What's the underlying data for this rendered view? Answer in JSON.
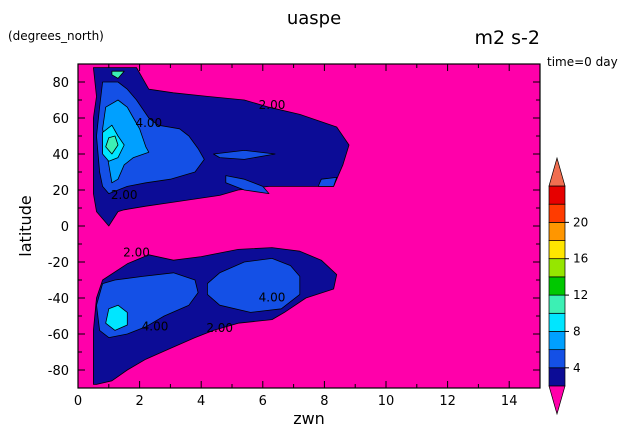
{
  "chart_data": {
    "type": "contour",
    "title": "uaspe",
    "units": "m2 s-2",
    "y_units_note": "(degrees_north)",
    "time_label": "time=0 day",
    "xlabel": "zwn",
    "ylabel": "latitude",
    "xlim": [
      0,
      15
    ],
    "ylim": [
      -90,
      90
    ],
    "x_ticks": [
      "0",
      "2",
      "4",
      "6",
      "8",
      "10",
      "12",
      "14"
    ],
    "x_tick_values": [
      0,
      2,
      4,
      6,
      8,
      10,
      12,
      14
    ],
    "y_ticks": [
      "80",
      "60",
      "40",
      "20",
      "0",
      "-20",
      "-40",
      "-60",
      "-80"
    ],
    "y_tick_values": [
      80,
      60,
      40,
      20,
      0,
      -20,
      -40,
      -60,
      -80
    ],
    "contour_labels": [
      {
        "text": "4.00",
        "x": 2.3,
        "y": 55
      },
      {
        "text": "2.00",
        "x": 6.3,
        "y": 65
      },
      {
        "text": "2.00",
        "x": 1.5,
        "y": 15
      },
      {
        "text": "2.00",
        "x": 1.9,
        "y": -17
      },
      {
        "text": "4.00",
        "x": 6.3,
        "y": -42
      },
      {
        "text": "4.00",
        "x": 2.5,
        "y": -58
      },
      {
        "text": "2.00",
        "x": 4.6,
        "y": -59
      }
    ],
    "colorbar": {
      "tick_labels": [
        "4",
        "8",
        "12",
        "16",
        "20"
      ],
      "levels": [
        2,
        4,
        6,
        8,
        10,
        12,
        14,
        16,
        18,
        20,
        22
      ],
      "colors": [
        "#0c0c96",
        "#1450e6",
        "#00a0ff",
        "#00e6ff",
        "#3cf0b4",
        "#00c800",
        "#96e600",
        "#ffe600",
        "#ff9600",
        "#ff3c00",
        "#e60000"
      ],
      "below_color": "#ff00aa",
      "above_color": "#f06e50"
    },
    "background_color": "#ff00aa",
    "bands": [
      {
        "level": "2-4",
        "color": "#0c0c96",
        "polygons": [
          [
            [
              0.5,
              88
            ],
            [
              1.9,
              88
            ],
            [
              2.3,
              76
            ],
            [
              3.1,
              74
            ],
            [
              4.2,
              72
            ],
            [
              5.4,
              70
            ],
            [
              6.2,
              66
            ],
            [
              7.2,
              62
            ],
            [
              8.4,
              55
            ],
            [
              8.8,
              45
            ],
            [
              8.6,
              34
            ],
            [
              8.3,
              22
            ],
            [
              7.4,
              22
            ],
            [
              6.2,
              22
            ],
            [
              5.2,
              20
            ],
            [
              4.6,
              17
            ],
            [
              3.8,
              15
            ],
            [
              3.0,
              13
            ],
            [
              2.2,
              11
            ],
            [
              1.5,
              9
            ],
            [
              1.3,
              8
            ],
            [
              1.0,
              0
            ],
            [
              0.8,
              4
            ],
            [
              0.6,
              8
            ],
            [
              0.5,
              18
            ],
            [
              0.5,
              34
            ],
            [
              0.5,
              60
            ],
            [
              0.6,
              72
            ]
          ],
          [
            [
              0.5,
              -88
            ],
            [
              0.5,
              -78
            ],
            [
              0.5,
              -58
            ],
            [
              0.6,
              -40
            ],
            [
              0.8,
              -30
            ],
            [
              1.6,
              -21
            ],
            [
              2.3,
              -16
            ],
            [
              3.1,
              -19
            ],
            [
              4.0,
              -17
            ],
            [
              5.2,
              -13
            ],
            [
              6.3,
              -12
            ],
            [
              7.2,
              -14
            ],
            [
              7.9,
              -19
            ],
            [
              8.4,
              -27
            ],
            [
              8.3,
              -35
            ],
            [
              7.4,
              -40
            ],
            [
              6.7,
              -48
            ],
            [
              6.3,
              -52
            ],
            [
              5.2,
              -54
            ],
            [
              4.4,
              -58
            ],
            [
              3.8,
              -62
            ],
            [
              3.0,
              -68
            ],
            [
              2.2,
              -74
            ],
            [
              1.6,
              -80
            ],
            [
              1.1,
              -86
            ],
            [
              0.6,
              -88
            ]
          ]
        ]
      },
      {
        "level": "4-6",
        "color": "#1450e6",
        "polygons": [
          [
            [
              0.8,
              80
            ],
            [
              1.3,
              80
            ],
            [
              1.6,
              76
            ],
            [
              1.9,
              70
            ],
            [
              2.3,
              60
            ],
            [
              2.6,
              56
            ],
            [
              3.3,
              54
            ],
            [
              3.6,
              50
            ],
            [
              3.9,
              43
            ],
            [
              4.1,
              37
            ],
            [
              3.8,
              30
            ],
            [
              3.0,
              26
            ],
            [
              2.2,
              24
            ],
            [
              1.6,
              22
            ],
            [
              1.0,
              18
            ],
            [
              0.8,
              22
            ],
            [
              0.7,
              30
            ],
            [
              0.6,
              50
            ],
            [
              0.7,
              66
            ]
          ],
          [
            [
              4.4,
              40
            ],
            [
              5.4,
              42
            ],
            [
              6.4,
              40
            ],
            [
              5.4,
              37
            ],
            [
              4.6,
              38
            ]
          ],
          [
            [
              4.8,
              28
            ],
            [
              5.4,
              26
            ],
            [
              6.0,
              22
            ],
            [
              6.2,
              18
            ],
            [
              5.4,
              20
            ],
            [
              4.8,
              24
            ]
          ],
          [
            [
              7.9,
              26
            ],
            [
              8.4,
              27
            ],
            [
              8.3,
              22
            ],
            [
              7.8,
              22
            ]
          ],
          [
            [
              0.8,
              -32
            ],
            [
              1.2,
              -30
            ],
            [
              2.1,
              -28
            ],
            [
              3.1,
              -26
            ],
            [
              3.8,
              -30
            ],
            [
              3.9,
              -37
            ],
            [
              3.6,
              -44
            ],
            [
              2.8,
              -50
            ],
            [
              2.2,
              -56
            ],
            [
              1.6,
              -60
            ],
            [
              1.0,
              -62
            ],
            [
              0.7,
              -58
            ],
            [
              0.6,
              -44
            ]
          ],
          [
            [
              4.2,
              -32
            ],
            [
              4.6,
              -26
            ],
            [
              5.4,
              -20
            ],
            [
              6.3,
              -18
            ],
            [
              6.9,
              -22
            ],
            [
              7.2,
              -28
            ],
            [
              7.2,
              -38
            ],
            [
              6.6,
              -46
            ],
            [
              5.6,
              -48
            ],
            [
              4.6,
              -44
            ],
            [
              4.2,
              -38
            ]
          ]
        ]
      },
      {
        "level": "6-8",
        "color": "#00a0ff",
        "polygons": [
          [
            [
              0.9,
              66
            ],
            [
              1.3,
              70
            ],
            [
              1.6,
              66
            ],
            [
              1.8,
              60
            ],
            [
              2.0,
              54
            ],
            [
              2.2,
              44
            ],
            [
              2.3,
              41
            ],
            [
              1.8,
              38
            ],
            [
              1.5,
              34
            ],
            [
              1.3,
              26
            ],
            [
              1.1,
              24
            ],
            [
              1.0,
              34
            ],
            [
              0.9,
              44
            ],
            [
              0.8,
              54
            ]
          ]
        ]
      },
      {
        "level": "8-10",
        "color": "#00e6ff",
        "polygons": [
          [
            [
              0.8,
              52
            ],
            [
              1.1,
              56
            ],
            [
              1.3,
              50
            ],
            [
              1.5,
              45
            ],
            [
              1.3,
              38
            ],
            [
              1.0,
              36
            ],
            [
              0.8,
              40
            ]
          ],
          [
            [
              1.0,
              -46
            ],
            [
              1.3,
              -44
            ],
            [
              1.6,
              -48
            ],
            [
              1.6,
              -55
            ],
            [
              1.2,
              -58
            ],
            [
              0.9,
              -54
            ]
          ]
        ]
      },
      {
        "level": "10-12",
        "color": "#3cf0b4",
        "polygons": [
          [
            [
              1.0,
              49
            ],
            [
              1.2,
              50
            ],
            [
              1.3,
              45
            ],
            [
              1.1,
              40
            ],
            [
              0.9,
              44
            ]
          ],
          [
            [
              1.1,
              86
            ],
            [
              1.5,
              86
            ],
            [
              1.3,
              82
            ],
            [
              1.1,
              84
            ]
          ]
        ]
      }
    ]
  }
}
